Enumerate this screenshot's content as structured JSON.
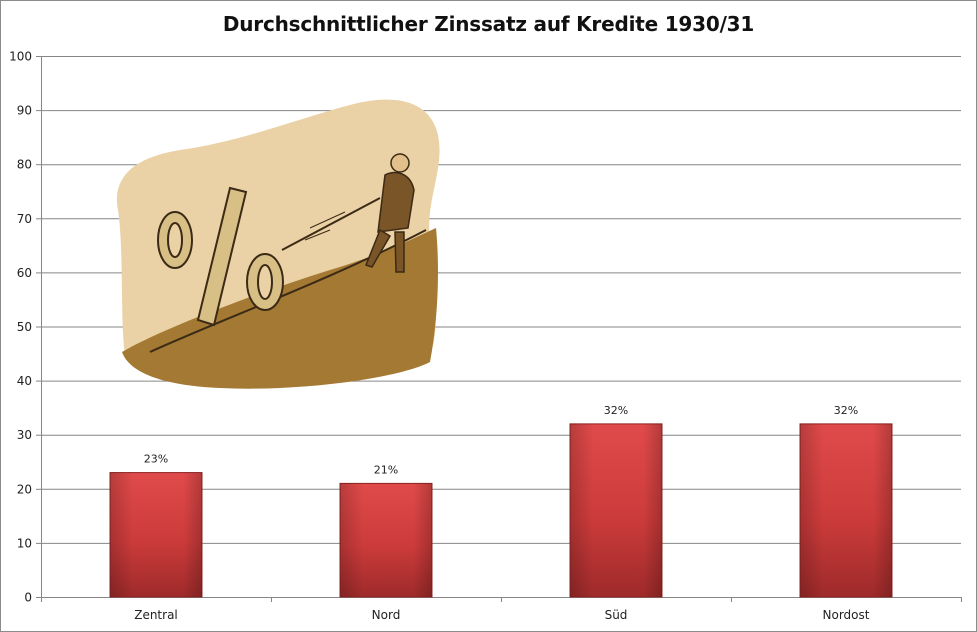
{
  "chart_data": {
    "type": "bar",
    "title": "Durchschnittlicher Zinssatz auf Kredite 1930/31",
    "xlabel": "",
    "ylabel": "",
    "categories": [
      "Zentral",
      "Nord",
      "Süd",
      "Nordost"
    ],
    "values": [
      23,
      21,
      32,
      32
    ],
    "data_labels": [
      "23%",
      "21%",
      "32%",
      "32%"
    ],
    "ylim": [
      0,
      100
    ],
    "yticks": [
      "0",
      "10",
      "20",
      "30",
      "40",
      "50",
      "60",
      "70",
      "80",
      "90",
      "100"
    ],
    "grid": true,
    "legend": "none",
    "bar_color": "#c93b3b",
    "illustration": "percent-sign-pulled-uphill-clipart"
  }
}
